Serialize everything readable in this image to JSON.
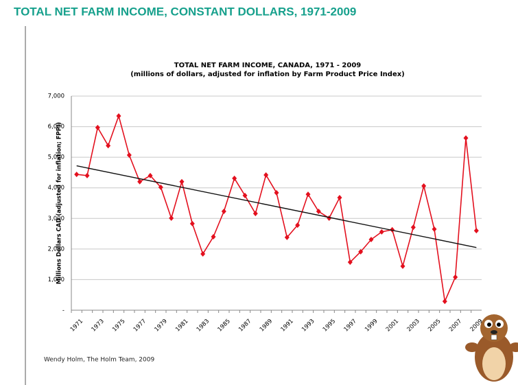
{
  "header": {
    "title": "TOTAL NET FARM INCOME, CONSTANT DOLLARS, 1971-2009"
  },
  "source": "Wendy Holm, The Holm Team, 2009",
  "chart_data": {
    "type": "line",
    "title": "TOTAL NET FARM INCOME, CANADA, 1971 - 2009",
    "subtitle": "(millions of dollars, adjusted for inflation by Farm Product Price Index)",
    "y_label": "Millions Dollars CAD (adjusted for inflation; FPPI)",
    "categories": [
      "1971",
      null,
      "1973",
      null,
      "1975",
      null,
      "1977",
      null,
      "1979",
      null,
      "1981",
      null,
      "1983",
      null,
      "1985",
      null,
      "1987",
      null,
      "1989",
      null,
      "1991",
      null,
      "1993",
      null,
      "1995",
      null,
      "1997",
      null,
      "1999",
      null,
      "2001",
      null,
      "2003",
      null,
      "2005",
      null,
      "2007",
      null,
      "2009"
    ],
    "series": [
      {
        "color": "#e3101e",
        "values": [
          4440,
          4400,
          5970,
          5380,
          6350,
          5070,
          4200,
          4400,
          4020,
          3010,
          4200,
          2830,
          1840,
          2400,
          3230,
          4310,
          3750,
          3160,
          4420,
          3840,
          2380,
          2780,
          3790,
          3230,
          3010,
          3680,
          1570,
          1910,
          2310,
          2560,
          2630,
          1440,
          2710,
          4060,
          2650,
          290,
          1080,
          5630,
          2600
        ]
      }
    ],
    "trend": {
      "start": 4720,
      "end": 2050,
      "color": "#111111"
    },
    "ylim": [
      0,
      7000
    ],
    "yticks": [
      {
        "value": 0,
        "label": "-"
      },
      {
        "value": 1000,
        "label": "1,000"
      },
      {
        "value": 2000,
        "label": "2,000"
      },
      {
        "value": 3000,
        "label": "3,000"
      },
      {
        "value": 4000,
        "label": "4,000"
      },
      {
        "value": 5000,
        "label": "5,000"
      },
      {
        "value": 6000,
        "label": "6,000"
      },
      {
        "value": 7000,
        "label": "7,000"
      }
    ],
    "grid": true
  }
}
